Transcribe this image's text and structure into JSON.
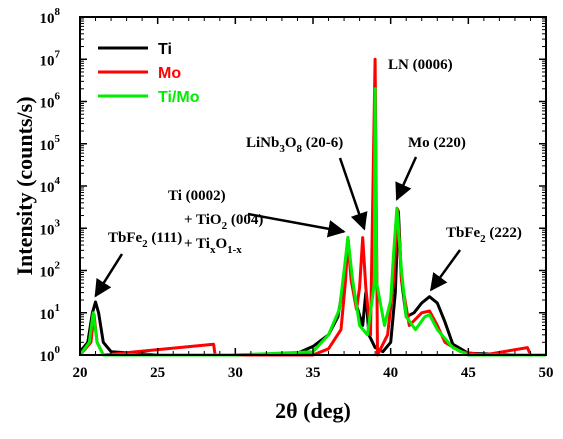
{
  "chart_data": {
    "type": "line",
    "xlabel": "2θ (deg)",
    "ylabel": "Intensity (counts/s)",
    "xlim": [
      20,
      50
    ],
    "ylim_log10": [
      0,
      8
    ],
    "y_scale": "log",
    "x_ticks": [
      "20",
      "25",
      "30",
      "35",
      "40",
      "45",
      "50"
    ],
    "y_ticks": [
      {
        "base": "10",
        "exp": "0"
      },
      {
        "base": "10",
        "exp": "1"
      },
      {
        "base": "10",
        "exp": "2"
      },
      {
        "base": "10",
        "exp": "3"
      },
      {
        "base": "10",
        "exp": "4"
      },
      {
        "base": "10",
        "exp": "5"
      },
      {
        "base": "10",
        "exp": "6"
      },
      {
        "base": "10",
        "exp": "7"
      },
      {
        "base": "10",
        "exp": "8"
      }
    ],
    "legend_position": "top-left",
    "series": [
      {
        "name": "Ti",
        "color": "#000000",
        "points": [
          [
            20,
            1.2
          ],
          [
            20.5,
            2
          ],
          [
            20.8,
            10
          ],
          [
            21.0,
            18
          ],
          [
            21.2,
            10
          ],
          [
            21.5,
            2
          ],
          [
            22,
            1.2
          ],
          [
            25,
            1
          ],
          [
            30,
            1
          ],
          [
            34,
            1.1
          ],
          [
            35,
            1.6
          ],
          [
            36,
            3
          ],
          [
            36.6,
            8
          ],
          [
            37.0,
            60
          ],
          [
            37.25,
            600
          ],
          [
            37.5,
            60
          ],
          [
            37.8,
            15
          ],
          [
            38.2,
            5
          ],
          [
            38.4,
            30
          ],
          [
            38.6,
            3
          ],
          [
            39.0,
            1.5
          ],
          [
            39.5,
            1.2
          ],
          [
            40.0,
            2
          ],
          [
            40.3,
            30
          ],
          [
            40.5,
            2500
          ],
          [
            40.7,
            60
          ],
          [
            41.0,
            8
          ],
          [
            41.5,
            10
          ],
          [
            42.0,
            17
          ],
          [
            42.5,
            24
          ],
          [
            43.0,
            17
          ],
          [
            43.5,
            6
          ],
          [
            44,
            1.8
          ],
          [
            45,
            1.1
          ],
          [
            48,
            1
          ],
          [
            50,
            1
          ]
        ]
      },
      {
        "name": "Mo",
        "color": "#ff0000",
        "points": [
          [
            20,
            1
          ],
          [
            20.7,
            2
          ],
          [
            20.9,
            9
          ],
          [
            21.1,
            2
          ],
          [
            21.5,
            1
          ],
          [
            28.6,
            1.8
          ],
          [
            28.7,
            1
          ],
          [
            35,
            1
          ],
          [
            36,
            1.4
          ],
          [
            36.8,
            4
          ],
          [
            37.1,
            60
          ],
          [
            37.25,
            500
          ],
          [
            37.45,
            60
          ],
          [
            37.8,
            12
          ],
          [
            38.0,
            40
          ],
          [
            38.2,
            600
          ],
          [
            38.4,
            40
          ],
          [
            38.7,
            3
          ],
          [
            39.0,
            10000000
          ],
          [
            39.15,
            1
          ],
          [
            39.8,
            3
          ],
          [
            40.2,
            60
          ],
          [
            40.45,
            2800
          ],
          [
            40.7,
            60
          ],
          [
            41.2,
            5
          ],
          [
            42.0,
            10
          ],
          [
            42.5,
            11
          ],
          [
            43.0,
            5
          ],
          [
            43.5,
            2
          ],
          [
            44.5,
            1.2
          ],
          [
            46,
            1
          ],
          [
            48.8,
            1.5
          ],
          [
            49,
            1
          ],
          [
            50,
            1
          ]
        ]
      },
      {
        "name": "Ti/Mo",
        "color": "#00ee00",
        "points": [
          [
            20,
            1
          ],
          [
            20.6,
            2
          ],
          [
            20.85,
            10
          ],
          [
            21.1,
            2
          ],
          [
            21.5,
            1
          ],
          [
            30,
            1
          ],
          [
            35,
            1.2
          ],
          [
            36,
            3
          ],
          [
            36.7,
            12
          ],
          [
            37.0,
            100
          ],
          [
            37.25,
            600
          ],
          [
            37.55,
            60
          ],
          [
            37.8,
            15
          ],
          [
            38.0,
            5
          ],
          [
            38.5,
            3
          ],
          [
            38.95,
            50
          ],
          [
            39.0,
            2000000
          ],
          [
            39.1,
            50
          ],
          [
            39.6,
            5
          ],
          [
            40.0,
            20
          ],
          [
            40.2,
            300
          ],
          [
            40.4,
            3000
          ],
          [
            40.7,
            100
          ],
          [
            41.0,
            8
          ],
          [
            41.6,
            4
          ],
          [
            42.2,
            8
          ],
          [
            42.5,
            9
          ],
          [
            43.0,
            4
          ],
          [
            44,
            1.5
          ],
          [
            45,
            1
          ],
          [
            50,
            1
          ]
        ]
      }
    ],
    "annotations": [
      {
        "lines": [
          {
            "text": "TbFe",
            "sub": "2",
            "rest": " (111)"
          }
        ],
        "arrow_to": [
          21.0,
          18
        ]
      },
      {
        "lines": [
          {
            "text": "Ti (0002)"
          },
          {
            "text": "+ TiO",
            "sub": "2",
            "rest": " (004)"
          },
          {
            "text": "+ Ti",
            "sub": "x",
            "mid": "O",
            "sub2": "1-x"
          }
        ],
        "arrow_to": [
          37.25,
          600
        ]
      },
      {
        "lines": [
          {
            "text": "LiNb",
            "sub": "3",
            "mid": "O",
            "sub2": "8",
            "rest": " (20-6)"
          }
        ],
        "arrow_to": [
          38.3,
          700
        ]
      },
      {
        "lines": [
          {
            "text": "LN (0006)"
          }
        ],
        "arrow_to": null
      },
      {
        "lines": [
          {
            "text": "Mo (220)"
          }
        ],
        "arrow_to": [
          40.4,
          3500
        ]
      },
      {
        "lines": [
          {
            "text": "TbFe",
            "sub": "2",
            "rest": " (222)"
          }
        ],
        "arrow_to": [
          42.6,
          25
        ]
      }
    ]
  }
}
